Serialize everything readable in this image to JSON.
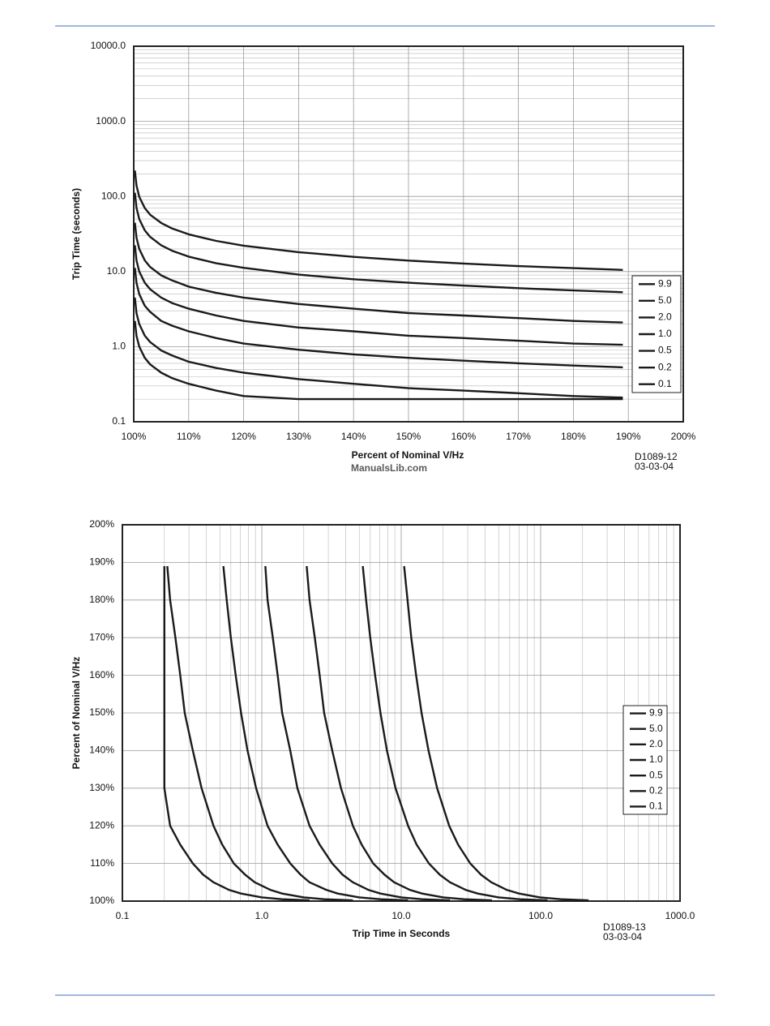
{
  "watermark": "ManualsLib.com",
  "chart_data": [
    {
      "type": "line",
      "ylabel": "Trip Time (seconds)",
      "xlabel": "Percent of Nominal V/Hz",
      "note": [
        "D1089-12",
        "03-03-04"
      ],
      "xlog": false,
      "ylog": true,
      "grid": true,
      "minor_grid": true,
      "legend": "right",
      "color": "#1a1a1a",
      "xlim": [
        100,
        200
      ],
      "xticks": [
        {
          "value": 100,
          "label": "100%"
        },
        {
          "value": 110,
          "label": "110%"
        },
        {
          "value": 120,
          "label": "120%"
        },
        {
          "value": 130,
          "label": "130%"
        },
        {
          "value": 140,
          "label": "140%"
        },
        {
          "value": 150,
          "label": "150%"
        },
        {
          "value": 160,
          "label": "160%"
        },
        {
          "value": 170,
          "label": "170%"
        },
        {
          "value": 180,
          "label": "180%"
        },
        {
          "value": 190,
          "label": "190%"
        },
        {
          "value": 200,
          "label": "200%"
        }
      ],
      "ylim": [
        0.1,
        10000
      ],
      "yticks": [
        0.1,
        {
          "value": 1,
          "label": "1.0"
        },
        {
          "value": 10,
          "label": "10.0"
        },
        {
          "value": 100,
          "label": "100.0"
        },
        {
          "value": 1000,
          "label": "1000.0"
        },
        {
          "value": 10000,
          "label": "10000.0"
        }
      ],
      "x": [
        100.2,
        100.5,
        101,
        102,
        103,
        105,
        107,
        110,
        115,
        120,
        130,
        140,
        150,
        160,
        170,
        180,
        189
      ],
      "series": [
        {
          "name": "9.9",
          "values": [
            221,
            140,
            99,
            70,
            57,
            44.3,
            37.4,
            31.3,
            25.6,
            22.1,
            18.1,
            15.7,
            14.0,
            12.8,
            11.8,
            11.1,
            10.5
          ]
        },
        {
          "name": "5.0",
          "values": [
            112,
            70.7,
            50,
            35.4,
            28.9,
            22.4,
            18.9,
            15.8,
            12.9,
            11.2,
            9.1,
            7.9,
            7.1,
            6.5,
            6.0,
            5.6,
            5.3
          ]
        },
        {
          "name": "2.0",
          "values": [
            44.7,
            28.3,
            20,
            14.1,
            11.5,
            8.9,
            7.6,
            6.3,
            5.2,
            4.5,
            3.7,
            3.2,
            2.8,
            2.6,
            2.4,
            2.2,
            2.1
          ]
        },
        {
          "name": "1.0",
          "values": [
            22.4,
            14.1,
            10,
            7.1,
            5.8,
            4.5,
            3.8,
            3.2,
            2.6,
            2.2,
            1.8,
            1.6,
            1.4,
            1.3,
            1.2,
            1.1,
            1.06
          ]
        },
        {
          "name": "0.5",
          "values": [
            11.2,
            7.1,
            5,
            3.5,
            2.9,
            2.2,
            1.9,
            1.6,
            1.3,
            1.1,
            0.91,
            0.79,
            0.71,
            0.65,
            0.6,
            0.56,
            0.53
          ]
        },
        {
          "name": "0.2",
          "values": [
            4.5,
            2.8,
            2.0,
            1.4,
            1.15,
            0.89,
            0.76,
            0.63,
            0.52,
            0.45,
            0.37,
            0.32,
            0.28,
            0.26,
            0.24,
            0.22,
            0.21
          ]
        },
        {
          "name": "0.1",
          "values": [
            2.2,
            1.4,
            1.0,
            0.71,
            0.58,
            0.45,
            0.38,
            0.32,
            0.26,
            0.22,
            0.2,
            0.2,
            0.2,
            0.2,
            0.2,
            0.2,
            0.2
          ]
        }
      ]
    },
    {
      "type": "line",
      "ylabel": "Percent of Nominal V/Hz",
      "xlabel": "Trip Time in Seconds",
      "note": [
        "D1089-13",
        "03-03-04"
      ],
      "xlog": true,
      "ylog": false,
      "grid": true,
      "minor_grid": true,
      "legend": "right",
      "color": "#1a1a1a",
      "xlim": [
        0.1,
        1000
      ],
      "xticks": [
        0.1,
        {
          "value": 1,
          "label": "1.0"
        },
        {
          "value": 10,
          "label": "10.0"
        },
        {
          "value": 100,
          "label": "100.0"
        },
        {
          "value": 1000,
          "label": "1000.0"
        }
      ],
      "ylim": [
        100,
        200
      ],
      "yticks": [
        {
          "value": 100,
          "label": "100%"
        },
        {
          "value": 110,
          "label": "110%"
        },
        {
          "value": 120,
          "label": "120%"
        },
        {
          "value": 130,
          "label": "130%"
        },
        {
          "value": 140,
          "label": "140%"
        },
        {
          "value": 150,
          "label": "150%"
        },
        {
          "value": 160,
          "label": "160%"
        },
        {
          "value": 170,
          "label": "170%"
        },
        {
          "value": 180,
          "label": "180%"
        },
        {
          "value": 190,
          "label": "190%"
        },
        {
          "value": 200,
          "label": "200%"
        }
      ],
      "y": [
        100.2,
        100.5,
        101,
        102,
        103,
        105,
        107,
        110,
        115,
        120,
        130,
        140,
        150,
        160,
        170,
        180,
        189
      ],
      "series": [
        {
          "name": "9.9",
          "x": [
            221,
            140,
            99,
            70,
            57,
            44.3,
            37.4,
            31.3,
            25.6,
            22.1,
            18.1,
            15.7,
            14.0,
            12.8,
            11.8,
            11.1,
            10.5
          ]
        },
        {
          "name": "5.0",
          "x": [
            112,
            70.7,
            50,
            35.4,
            28.9,
            22.4,
            18.9,
            15.8,
            12.9,
            11.2,
            9.1,
            7.9,
            7.1,
            6.5,
            6.0,
            5.6,
            5.3
          ]
        },
        {
          "name": "2.0",
          "x": [
            44.7,
            28.3,
            20,
            14.1,
            11.5,
            8.9,
            7.6,
            6.3,
            5.2,
            4.5,
            3.7,
            3.2,
            2.8,
            2.6,
            2.4,
            2.2,
            2.1
          ]
        },
        {
          "name": "1.0",
          "x": [
            22.4,
            14.1,
            10,
            7.1,
            5.8,
            4.5,
            3.8,
            3.2,
            2.6,
            2.2,
            1.8,
            1.6,
            1.4,
            1.3,
            1.2,
            1.1,
            1.06
          ]
        },
        {
          "name": "0.5",
          "x": [
            11.2,
            7.1,
            5,
            3.5,
            2.9,
            2.2,
            1.9,
            1.6,
            1.3,
            1.1,
            0.91,
            0.79,
            0.71,
            0.65,
            0.6,
            0.56,
            0.53
          ]
        },
        {
          "name": "0.2",
          "x": [
            4.5,
            2.8,
            2.0,
            1.4,
            1.15,
            0.89,
            0.76,
            0.63,
            0.52,
            0.45,
            0.37,
            0.32,
            0.28,
            0.26,
            0.24,
            0.22,
            0.21
          ]
        },
        {
          "name": "0.1",
          "x": [
            2.2,
            1.4,
            1.0,
            0.71,
            0.58,
            0.45,
            0.38,
            0.32,
            0.26,
            0.22,
            0.2,
            0.2,
            0.2,
            0.2,
            0.2,
            0.2,
            0.2
          ]
        }
      ]
    }
  ]
}
